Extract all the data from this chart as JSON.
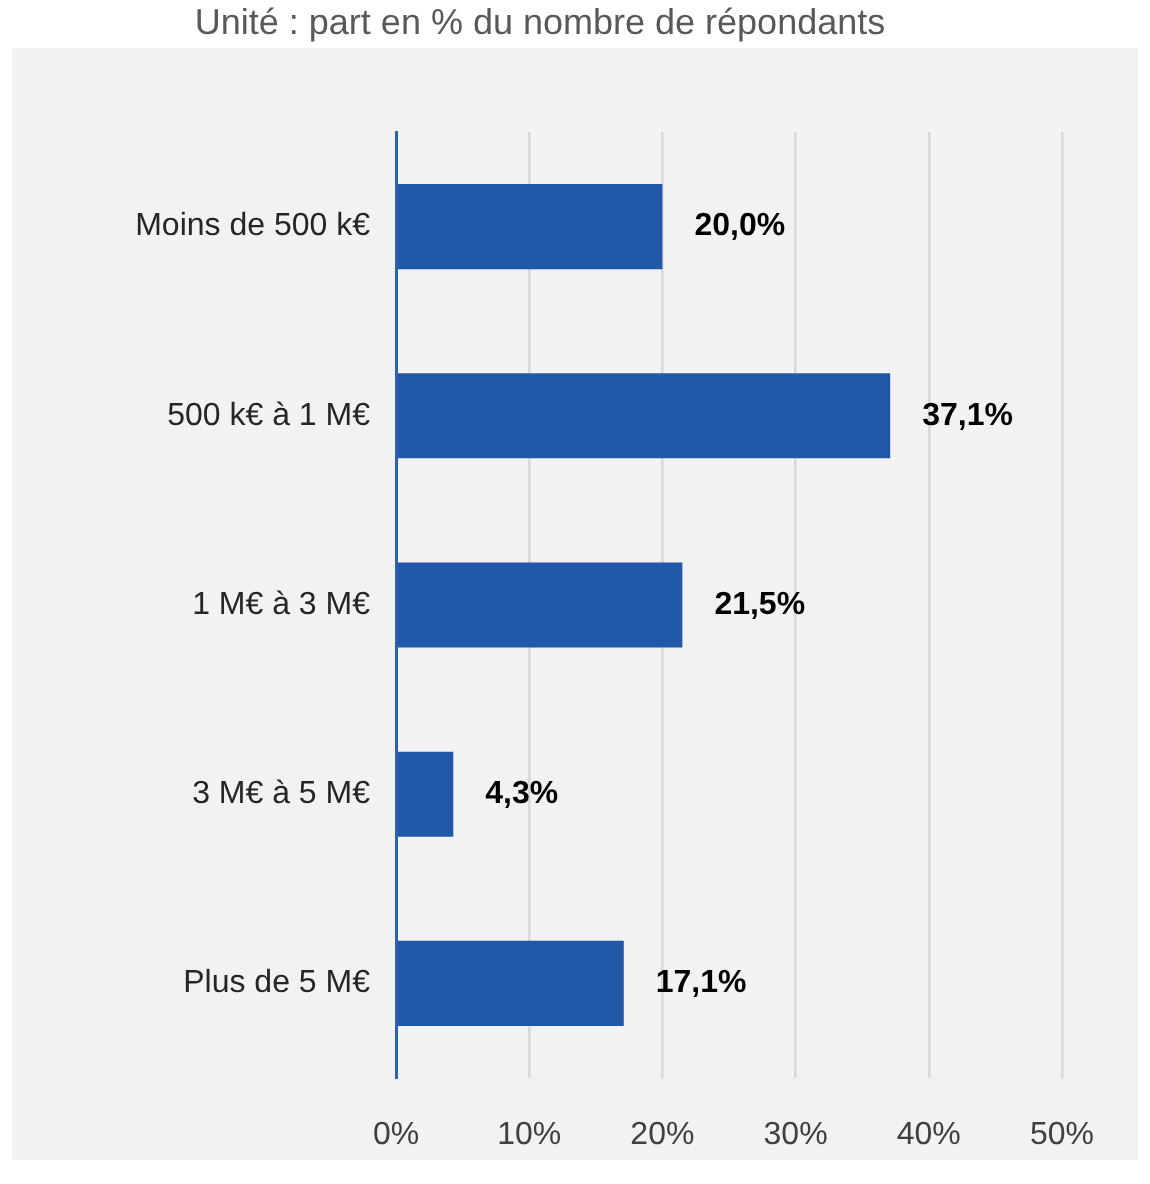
{
  "chart_data": {
    "type": "bar",
    "orientation": "horizontal",
    "subtitle": "Unité : part en % du nombre de répondants",
    "categories": [
      "Moins de 500 k€",
      "500 k€ à 1 M€",
      "1 M€ à 3 M€",
      "3 M€ à 5 M€",
      "Plus de 5 M€"
    ],
    "values": [
      20.0,
      37.1,
      21.5,
      4.3,
      17.1
    ],
    "value_labels": [
      "20,0%",
      "37,1%",
      "21,5%",
      "4,3%",
      "17,1%"
    ],
    "color": "#2159a8",
    "xlim": [
      0,
      50
    ],
    "xticks": [
      {
        "value": 0,
        "label": "0%"
      },
      {
        "value": 10,
        "label": "10%"
      },
      {
        "value": 20,
        "label": "20%"
      },
      {
        "value": 30,
        "label": "30%"
      },
      {
        "value": 40,
        "label": "40%"
      },
      {
        "value": 50,
        "label": "50%"
      }
    ],
    "grid": "x"
  }
}
